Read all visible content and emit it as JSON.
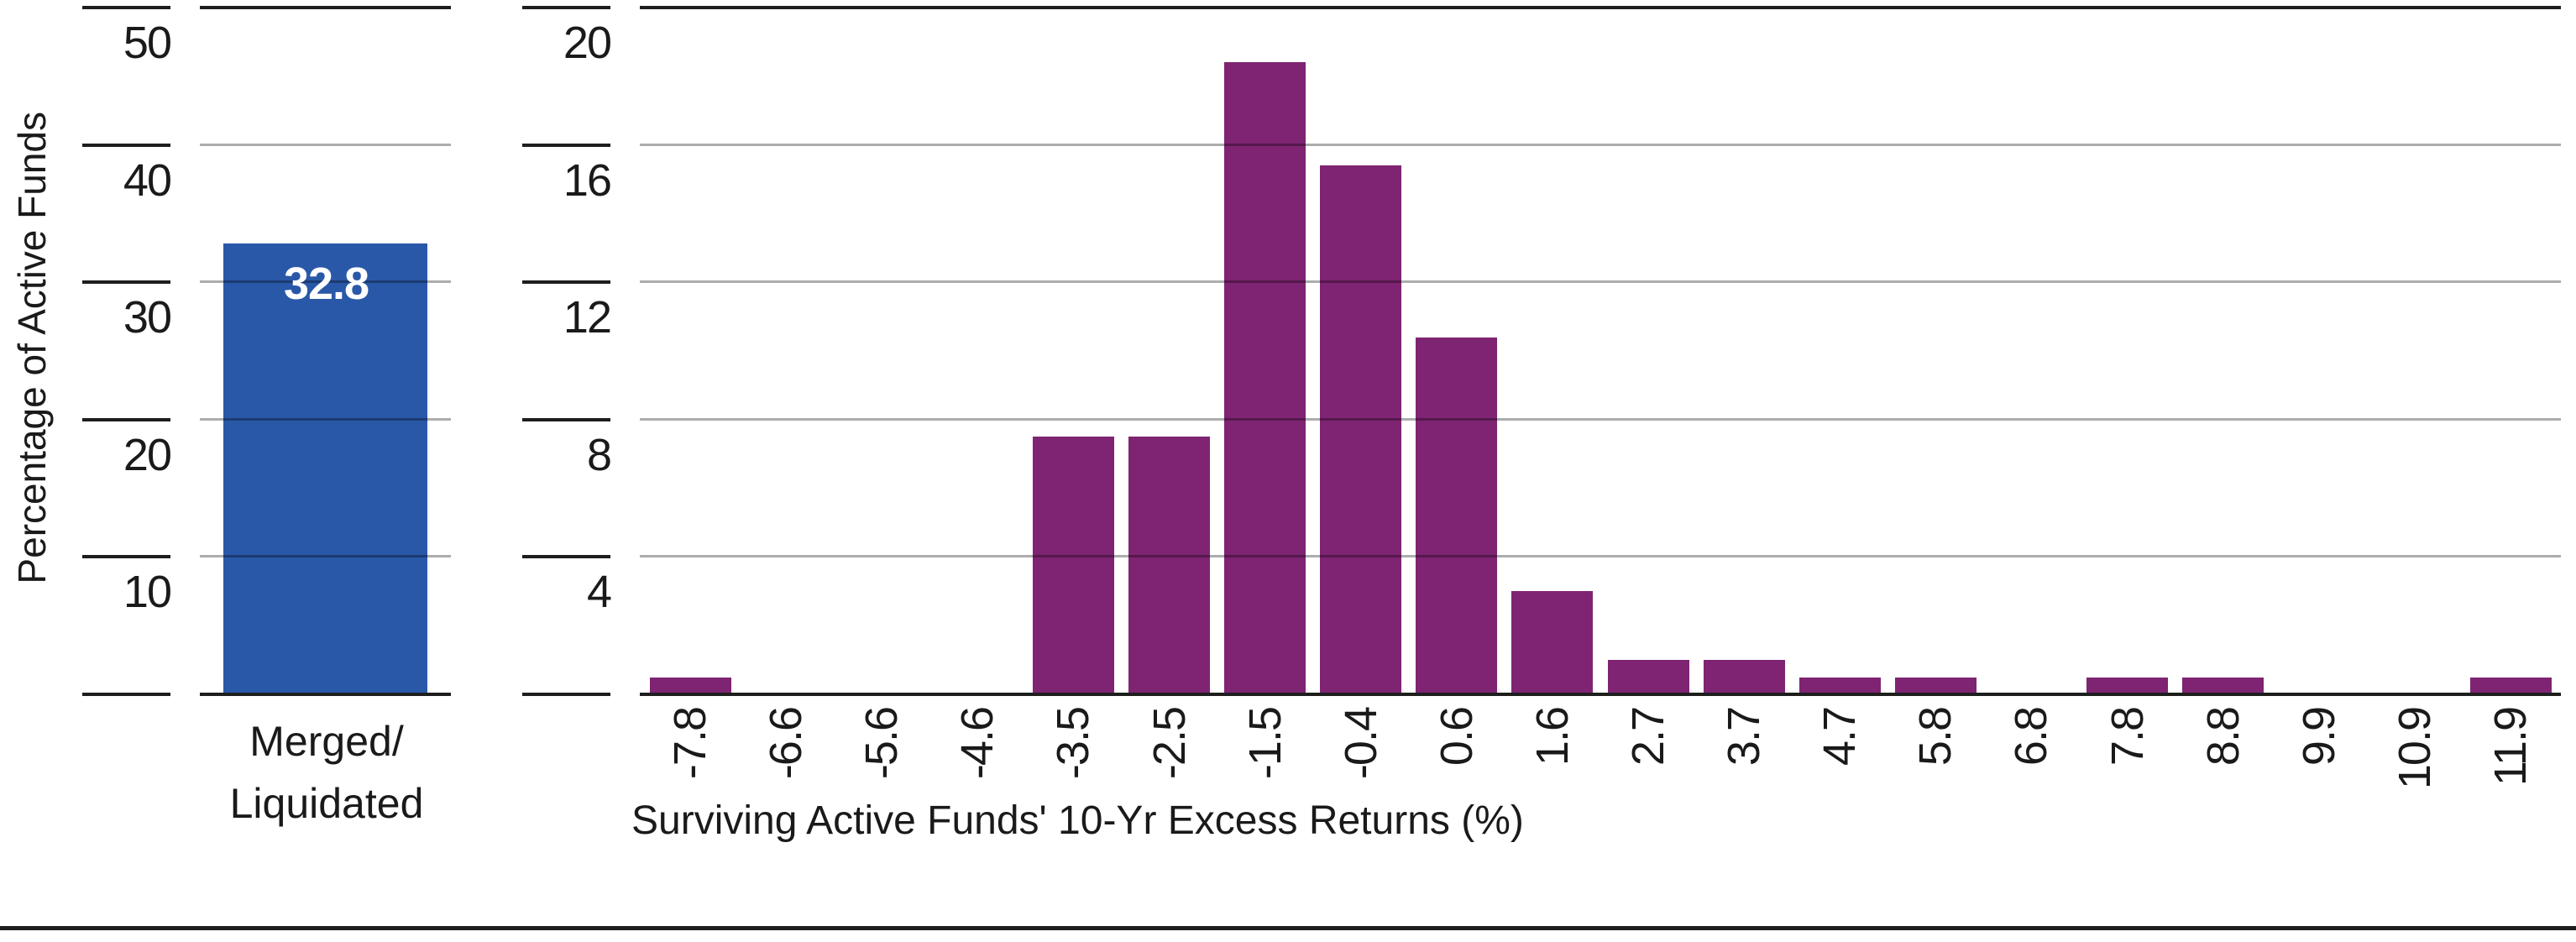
{
  "colors": {
    "merged_bar_blue": "#2A58A8",
    "histogram_purple": "#7E2472",
    "axis_dark": "#1E1E1E",
    "gridline_gray": "#ABABAB",
    "value_label_white": "#FFFFFF"
  },
  "chart_data": [
    {
      "type": "bar",
      "title": "",
      "categories": [
        "Merged/Liquidated"
      ],
      "category_lines": [
        "Merged/",
        "Liquidated"
      ],
      "values": [
        32.8
      ],
      "data_label": "32.8",
      "xlabel": "",
      "ylabel": "Percentage of Active Funds",
      "ylim": [
        0,
        50
      ],
      "yticks": [
        50,
        40,
        30,
        20,
        10
      ],
      "grid": true,
      "bar_color": "#2A58A8"
    },
    {
      "type": "bar",
      "title": "",
      "categories": [
        "-7.8",
        "-6.6",
        "-5.6",
        "-4.6",
        "-3.5",
        "-2.5",
        "-1.5",
        "-0.4",
        "0.6",
        "1.6",
        "2.7",
        "3.7",
        "4.7",
        "5.8",
        "6.8",
        "7.8",
        "8.8",
        "9.9",
        "10.9",
        "11.9"
      ],
      "values": [
        0.5,
        0,
        0,
        0,
        7.5,
        7.5,
        18.4,
        15.4,
        10.4,
        3.0,
        1.0,
        1.0,
        0.5,
        0.5,
        0,
        0.5,
        0.5,
        0,
        0,
        0.5
      ],
      "xlabel": "Surviving Active Funds' 10-Yr Excess Returns (%)",
      "ylabel": "",
      "ylim": [
        0,
        20
      ],
      "yticks": [
        20,
        16,
        12,
        8,
        4
      ],
      "grid": true,
      "bar_color": "#7E2472"
    }
  ]
}
